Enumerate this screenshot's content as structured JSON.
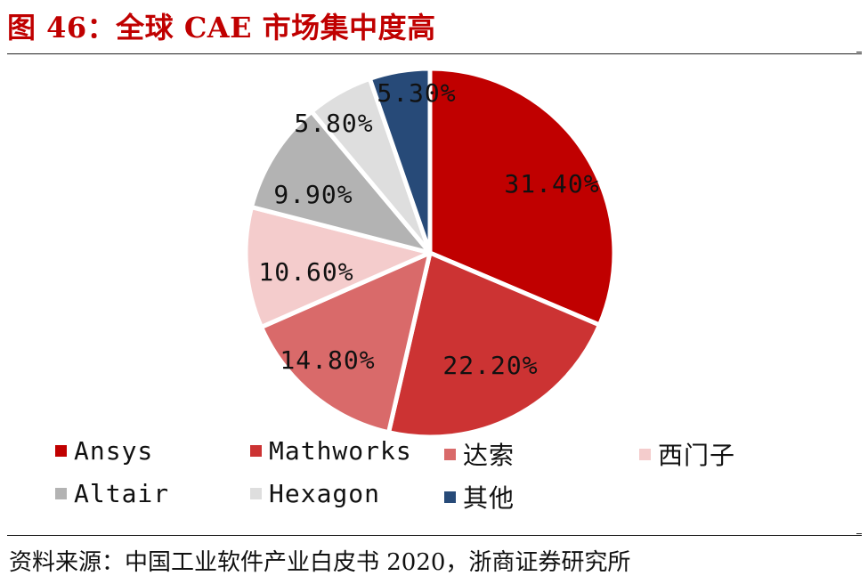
{
  "header": {
    "title": "图 46：全球 CAE 市场集中度高"
  },
  "footer": {
    "source": "资料来源：中国工业软件产业白皮书 2020，浙商证券研究所"
  },
  "chart_data": {
    "type": "pie",
    "title": "图 46：全球 CAE 市场集中度高",
    "start_angle": "12 o'clock, clockwise",
    "legend_position": "bottom",
    "slices": [
      {
        "name": "Ansys",
        "value": 31.4,
        "label": "31.40%",
        "color": "#c00000"
      },
      {
        "name": "Mathworks",
        "value": 22.2,
        "label": "22.20%",
        "color": "#cc3333"
      },
      {
        "name": "达索",
        "value": 14.8,
        "label": "14.80%",
        "color": "#d96a6a"
      },
      {
        "name": "西门子",
        "value": 10.6,
        "label": "10.60%",
        "color": "#f4cccc"
      },
      {
        "name": "Altair",
        "value": 9.9,
        "label": "9.90%",
        "color": "#b3b3b3"
      },
      {
        "name": "Hexagon",
        "value": 5.8,
        "label": "5.80%",
        "color": "#dedede"
      },
      {
        "name": "其他",
        "value": 5.3,
        "label": "5.30%",
        "color": "#274a78"
      }
    ]
  }
}
